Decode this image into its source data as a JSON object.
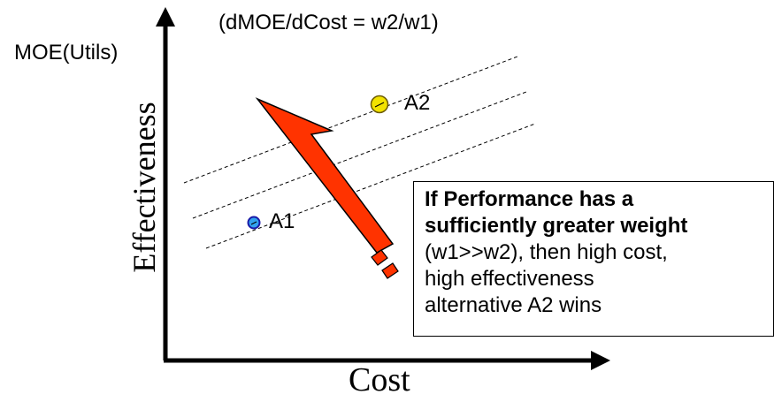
{
  "diagram": {
    "slope_note": "(dMOE/dCost = w2/w1)",
    "y_unit_label": "MOE(Utils)",
    "y_axis_title": "Effectiveness",
    "x_axis_title": "Cost",
    "alternatives": [
      {
        "name": "A1",
        "color": "#33a3ee"
      },
      {
        "name": "A2",
        "color": "#f2e200"
      }
    ],
    "arrow_color": "#ff3300",
    "callout": {
      "bold_line_1": "If Performance has a",
      "bold_line_2": "sufficiently greater weight",
      "line_3": "(w1>>w2), then high cost,",
      "line_4": "high effectiveness",
      "line_5": "alternative A2 wins"
    }
  }
}
